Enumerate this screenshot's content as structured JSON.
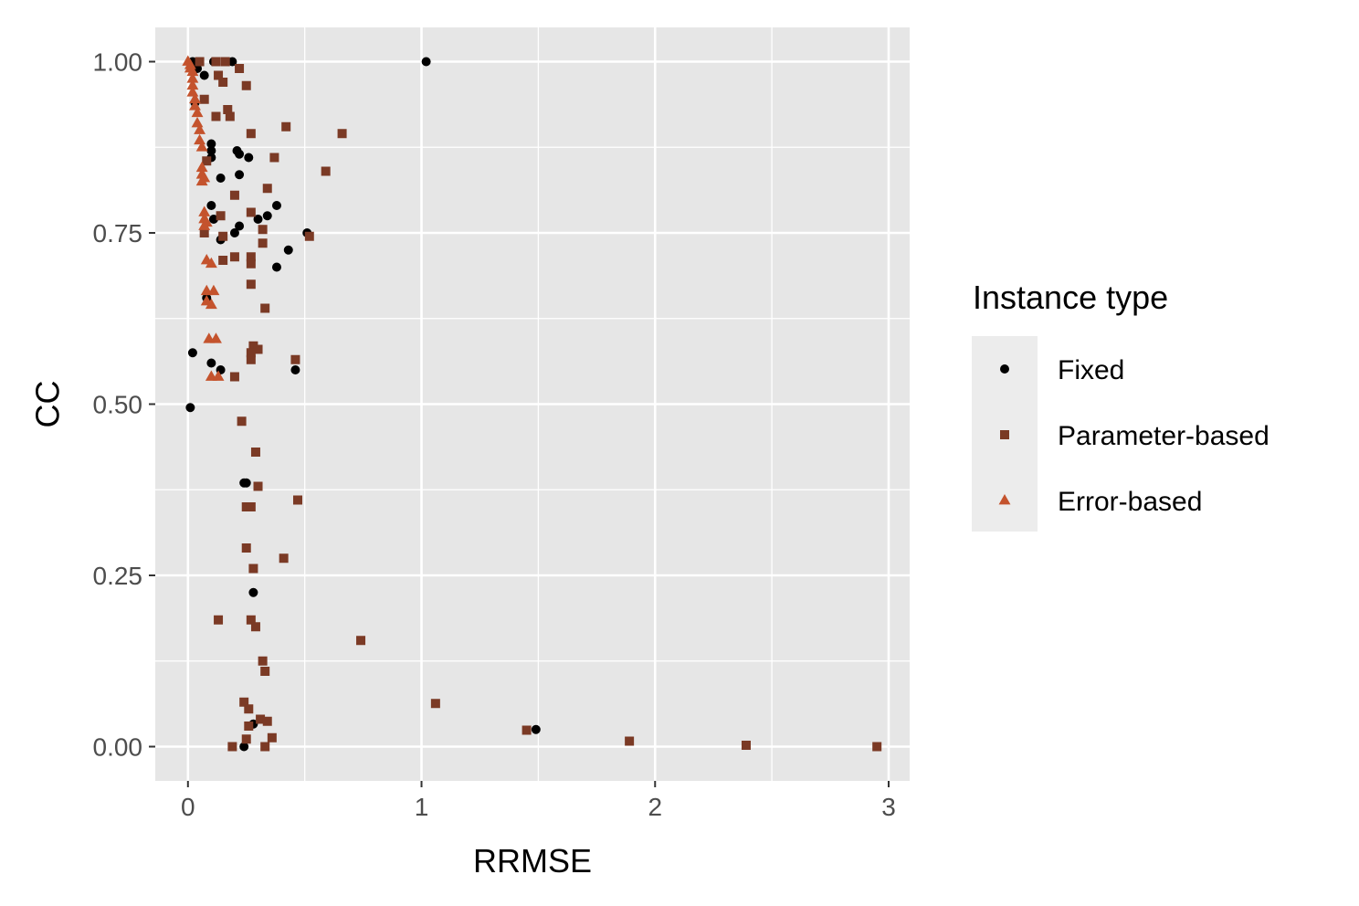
{
  "chart_data": {
    "type": "scatter",
    "xlabel": "RRMSE",
    "ylabel": "CC",
    "xlim": [
      -0.14,
      3.09
    ],
    "ylim": [
      -0.05,
      1.05
    ],
    "x_ticks": [
      0,
      1,
      2,
      3
    ],
    "x_tick_labels": [
      "0",
      "1",
      "2",
      "3"
    ],
    "y_ticks": [
      0,
      0.25,
      0.5,
      0.75,
      1
    ],
    "y_tick_labels": [
      "0.00",
      "0.25",
      "0.50",
      "0.75",
      "1.00"
    ],
    "grid": true,
    "background": "#e6e6e6",
    "legend": {
      "title": "Instance type",
      "position": "right"
    },
    "series": [
      {
        "name": "Fixed",
        "shape": "circle",
        "color": "#000000",
        "points": [
          [
            0.02,
            1.0
          ],
          [
            0.04,
            0.99
          ],
          [
            0.07,
            0.98
          ],
          [
            0.11,
            1.0
          ],
          [
            0.19,
            1.0
          ],
          [
            1.02,
            1.0
          ],
          [
            0.03,
            0.94
          ],
          [
            0.1,
            0.88
          ],
          [
            0.1,
            0.87
          ],
          [
            0.1,
            0.86
          ],
          [
            0.21,
            0.87
          ],
          [
            0.22,
            0.865
          ],
          [
            0.26,
            0.86
          ],
          [
            0.22,
            0.835
          ],
          [
            0.14,
            0.83
          ],
          [
            0.38,
            0.79
          ],
          [
            0.1,
            0.79
          ],
          [
            0.34,
            0.775
          ],
          [
            0.3,
            0.77
          ],
          [
            0.11,
            0.77
          ],
          [
            0.22,
            0.76
          ],
          [
            0.51,
            0.75
          ],
          [
            0.2,
            0.75
          ],
          [
            0.14,
            0.74
          ],
          [
            0.43,
            0.725
          ],
          [
            0.38,
            0.7
          ],
          [
            0.08,
            0.655
          ],
          [
            0.02,
            0.575
          ],
          [
            0.1,
            0.56
          ],
          [
            0.14,
            0.55
          ],
          [
            0.46,
            0.55
          ],
          [
            0.01,
            0.495
          ],
          [
            0.24,
            0.385
          ],
          [
            0.25,
            0.385
          ],
          [
            0.28,
            0.225
          ],
          [
            0.28,
            0.033
          ],
          [
            0.24,
            0.0
          ],
          [
            1.49,
            0.025
          ]
        ]
      },
      {
        "name": "Parameter-based",
        "shape": "square",
        "color": "#7b3a25",
        "points": [
          [
            0.05,
            1.0
          ],
          [
            0.12,
            1.0
          ],
          [
            0.16,
            1.0
          ],
          [
            0.22,
            0.99
          ],
          [
            0.13,
            0.98
          ],
          [
            0.15,
            0.97
          ],
          [
            0.25,
            0.965
          ],
          [
            0.07,
            0.945
          ],
          [
            0.17,
            0.93
          ],
          [
            0.12,
            0.92
          ],
          [
            0.18,
            0.92
          ],
          [
            0.42,
            0.905
          ],
          [
            0.27,
            0.895
          ],
          [
            0.66,
            0.895
          ],
          [
            0.37,
            0.86
          ],
          [
            0.08,
            0.855
          ],
          [
            0.59,
            0.84
          ],
          [
            0.34,
            0.815
          ],
          [
            0.2,
            0.805
          ],
          [
            0.27,
            0.78
          ],
          [
            0.14,
            0.775
          ],
          [
            0.07,
            0.75
          ],
          [
            0.15,
            0.745
          ],
          [
            0.32,
            0.755
          ],
          [
            0.52,
            0.745
          ],
          [
            0.32,
            0.735
          ],
          [
            0.2,
            0.715
          ],
          [
            0.27,
            0.715
          ],
          [
            0.15,
            0.71
          ],
          [
            0.27,
            0.705
          ],
          [
            0.27,
            0.675
          ],
          [
            0.33,
            0.64
          ],
          [
            0.28,
            0.585
          ],
          [
            0.3,
            0.58
          ],
          [
            0.27,
            0.575
          ],
          [
            0.46,
            0.565
          ],
          [
            0.27,
            0.565
          ],
          [
            0.2,
            0.54
          ],
          [
            0.23,
            0.475
          ],
          [
            0.29,
            0.43
          ],
          [
            0.3,
            0.38
          ],
          [
            0.47,
            0.36
          ],
          [
            0.25,
            0.35
          ],
          [
            0.27,
            0.35
          ],
          [
            0.25,
            0.29
          ],
          [
            0.41,
            0.275
          ],
          [
            0.28,
            0.26
          ],
          [
            0.13,
            0.185
          ],
          [
            0.27,
            0.185
          ],
          [
            0.29,
            0.175
          ],
          [
            0.74,
            0.155
          ],
          [
            0.32,
            0.125
          ],
          [
            0.33,
            0.11
          ],
          [
            0.24,
            0.065
          ],
          [
            0.26,
            0.055
          ],
          [
            1.06,
            0.063
          ],
          [
            0.31,
            0.04
          ],
          [
            0.34,
            0.037
          ],
          [
            0.26,
            0.03
          ],
          [
            0.36,
            0.013
          ],
          [
            0.25,
            0.011
          ],
          [
            0.19,
            0.0
          ],
          [
            0.33,
            0.0
          ],
          [
            1.45,
            0.024
          ],
          [
            1.89,
            0.008
          ],
          [
            2.39,
            0.002
          ],
          [
            2.95,
            0.0
          ]
        ]
      },
      {
        "name": "Error-based",
        "shape": "triangle",
        "color": "#c4532d",
        "points": [
          [
            0.0,
            1.0
          ],
          [
            0.01,
            0.995
          ],
          [
            0.01,
            0.99
          ],
          [
            0.02,
            0.985
          ],
          [
            0.02,
            0.975
          ],
          [
            0.02,
            0.965
          ],
          [
            0.02,
            0.955
          ],
          [
            0.03,
            0.945
          ],
          [
            0.03,
            0.935
          ],
          [
            0.04,
            0.925
          ],
          [
            0.04,
            0.91
          ],
          [
            0.05,
            0.9
          ],
          [
            0.05,
            0.885
          ],
          [
            0.06,
            0.875
          ],
          [
            0.06,
            0.845
          ],
          [
            0.06,
            0.835
          ],
          [
            0.06,
            0.825
          ],
          [
            0.07,
            0.83
          ],
          [
            0.07,
            0.78
          ],
          [
            0.07,
            0.77
          ],
          [
            0.07,
            0.76
          ],
          [
            0.08,
            0.765
          ],
          [
            0.08,
            0.71
          ],
          [
            0.1,
            0.705
          ],
          [
            0.08,
            0.665
          ],
          [
            0.11,
            0.665
          ],
          [
            0.08,
            0.65
          ],
          [
            0.1,
            0.645
          ],
          [
            0.09,
            0.595
          ],
          [
            0.12,
            0.595
          ],
          [
            0.1,
            0.54
          ],
          [
            0.13,
            0.54
          ]
        ]
      }
    ]
  }
}
